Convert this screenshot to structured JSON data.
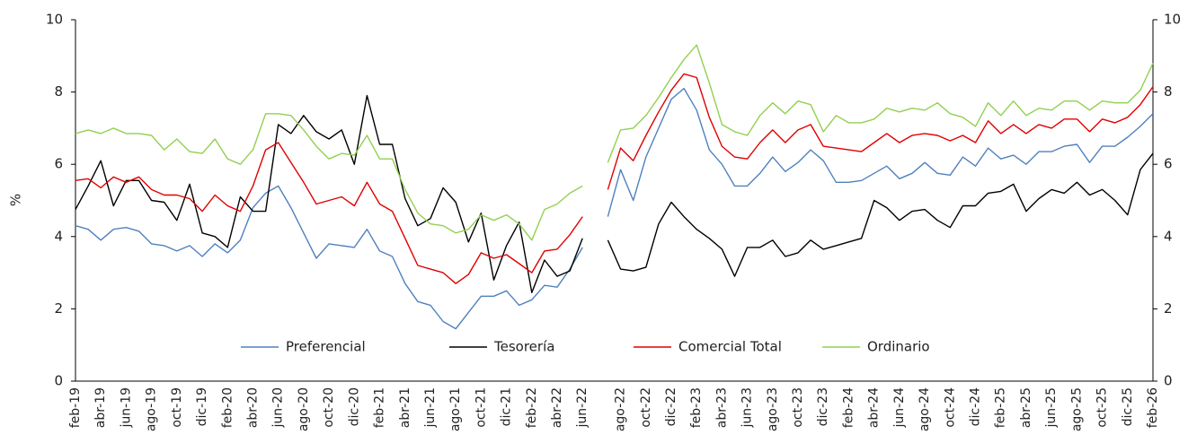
{
  "chart_data": {
    "type": "line",
    "ylabel": "%",
    "categories": [
      "feb-19",
      null,
      "abr-19",
      null,
      "jun-19",
      null,
      "ago-19",
      null,
      "oct-19",
      null,
      "dic-19",
      null,
      "feb-20",
      null,
      "abr-20",
      null,
      "jun-20",
      null,
      "ago-20",
      null,
      "oct-20",
      null,
      "dic-20",
      null,
      "feb-21",
      null,
      "abr-21",
      null,
      "jun-21",
      null,
      "ago-21",
      null,
      "oct-21",
      null,
      "dic-21",
      null,
      "feb-22",
      null,
      "abr-22",
      null,
      "jun-22",
      null,
      null,
      "ago-22",
      null,
      "oct-22",
      null,
      "dic-22",
      null,
      "feb-23",
      null,
      "abr-23",
      null,
      "jun-23",
      null,
      "ago-23",
      null,
      "oct-23",
      null,
      "dic-23",
      null,
      "feb-24",
      null,
      "abr-24",
      null,
      "jun-24",
      null,
      "ago-24",
      null,
      "oct-24",
      null,
      "dic-24",
      null,
      "feb-25",
      null,
      "abr-25",
      null,
      "jun-25",
      null,
      "ago-25",
      null,
      "oct-25",
      null,
      "dic-25",
      null,
      "feb-26"
    ],
    "series": [
      {
        "name": "Preferencial",
        "color": "#4f81bd",
        "values": [
          4.3,
          4.2,
          3.9,
          4.2,
          4.25,
          4.15,
          3.8,
          3.75,
          3.6,
          3.75,
          3.45,
          3.8,
          3.55,
          3.9,
          4.8,
          5.2,
          5.4,
          4.8,
          4.1,
          3.4,
          3.8,
          3.75,
          3.7,
          4.2,
          3.6,
          3.45,
          2.7,
          2.2,
          2.1,
          1.65,
          1.45,
          1.9,
          2.35,
          2.35,
          2.5,
          2.1,
          2.25,
          2.65,
          2.6,
          3.1,
          3.7,
          null,
          4.55,
          5.85,
          5.0,
          6.2,
          7.0,
          7.8,
          8.1,
          7.5,
          6.4,
          6.0,
          5.4,
          5.4,
          5.75,
          6.2,
          5.8,
          6.05,
          6.4,
          6.1,
          5.5,
          5.5,
          5.55,
          5.75,
          5.95,
          5.6,
          5.75,
          6.05,
          5.75,
          5.7,
          6.2,
          5.95,
          6.45,
          6.15,
          6.25,
          6.0,
          6.35,
          6.35,
          6.5,
          6.55,
          6.05,
          6.5,
          6.5,
          6.75,
          7.05,
          7.4
        ]
      },
      {
        "name": "Tesorería",
        "color": "#000000",
        "values": [
          4.75,
          5.4,
          6.1,
          4.85,
          5.55,
          5.55,
          5.0,
          4.95,
          4.45,
          5.45,
          4.1,
          4.0,
          3.7,
          5.1,
          4.7,
          4.7,
          7.1,
          6.85,
          7.35,
          6.9,
          6.7,
          6.95,
          6.0,
          7.9,
          6.55,
          6.55,
          5.05,
          4.3,
          4.5,
          5.35,
          4.95,
          3.85,
          4.65,
          2.8,
          3.75,
          4.4,
          2.45,
          3.35,
          2.9,
          3.05,
          3.95,
          null,
          3.9,
          3.1,
          3.05,
          3.15,
          4.35,
          4.95,
          4.55,
          4.2,
          3.95,
          3.65,
          2.9,
          3.7,
          3.7,
          3.9,
          3.45,
          3.55,
          3.9,
          3.65,
          3.75,
          3.85,
          3.95,
          5.0,
          4.8,
          4.45,
          4.7,
          4.75,
          4.45,
          4.25,
          4.85,
          4.85,
          5.2,
          5.25,
          5.45,
          4.7,
          5.05,
          5.3,
          5.2,
          5.5,
          5.15,
          5.3,
          5.0,
          4.6,
          5.85,
          6.3
        ]
      },
      {
        "name": "Comercial Total",
        "color": "#e00000",
        "values": [
          5.55,
          5.6,
          5.35,
          5.65,
          5.5,
          5.65,
          5.3,
          5.15,
          5.15,
          5.05,
          4.7,
          5.15,
          4.85,
          4.7,
          5.4,
          6.4,
          6.6,
          6.05,
          5.5,
          4.9,
          5.0,
          5.1,
          4.85,
          5.5,
          4.9,
          4.7,
          3.95,
          3.2,
          3.1,
          3.0,
          2.7,
          2.95,
          3.55,
          3.4,
          3.5,
          3.25,
          3.0,
          3.6,
          3.65,
          4.05,
          4.55,
          null,
          5.3,
          6.45,
          6.1,
          6.8,
          7.45,
          8.05,
          8.5,
          8.4,
          7.3,
          6.5,
          6.2,
          6.15,
          6.6,
          6.95,
          6.6,
          6.95,
          7.1,
          6.5,
          6.45,
          6.4,
          6.35,
          6.6,
          6.85,
          6.6,
          6.8,
          6.85,
          6.8,
          6.65,
          6.8,
          6.6,
          7.2,
          6.85,
          7.1,
          6.85,
          7.1,
          7.0,
          7.25,
          7.25,
          6.9,
          7.25,
          7.15,
          7.3,
          7.65,
          8.15
        ]
      },
      {
        "name": "Ordinario",
        "color": "#92d050",
        "values": [
          6.85,
          6.95,
          6.85,
          7.0,
          6.85,
          6.85,
          6.8,
          6.4,
          6.7,
          6.35,
          6.3,
          6.7,
          6.15,
          6.0,
          6.4,
          7.4,
          7.4,
          7.35,
          6.95,
          6.5,
          6.15,
          6.3,
          6.25,
          6.8,
          6.15,
          6.15,
          5.3,
          4.65,
          4.35,
          4.3,
          4.1,
          4.2,
          4.6,
          4.45,
          4.6,
          4.35,
          3.9,
          4.75,
          4.9,
          5.2,
          5.4,
          null,
          6.05,
          6.95,
          7.0,
          7.35,
          7.85,
          8.4,
          8.9,
          9.3,
          8.25,
          7.1,
          6.9,
          6.8,
          7.35,
          7.7,
          7.4,
          7.75,
          7.65,
          6.9,
          7.35,
          7.15,
          7.15,
          7.25,
          7.55,
          7.45,
          7.55,
          7.5,
          7.7,
          7.4,
          7.3,
          7.05,
          7.7,
          7.35,
          7.75,
          7.35,
          7.55,
          7.5,
          7.75,
          7.75,
          7.5,
          7.75,
          7.7,
          7.7,
          8.05,
          8.8
        ]
      }
    ],
    "ylim": [
      0,
      10
    ],
    "yticks": [
      0,
      2,
      4,
      6,
      8,
      10
    ],
    "y2lim": [
      0,
      10
    ],
    "y2ticks": [
      0,
      2,
      4,
      6,
      8,
      10
    ]
  }
}
